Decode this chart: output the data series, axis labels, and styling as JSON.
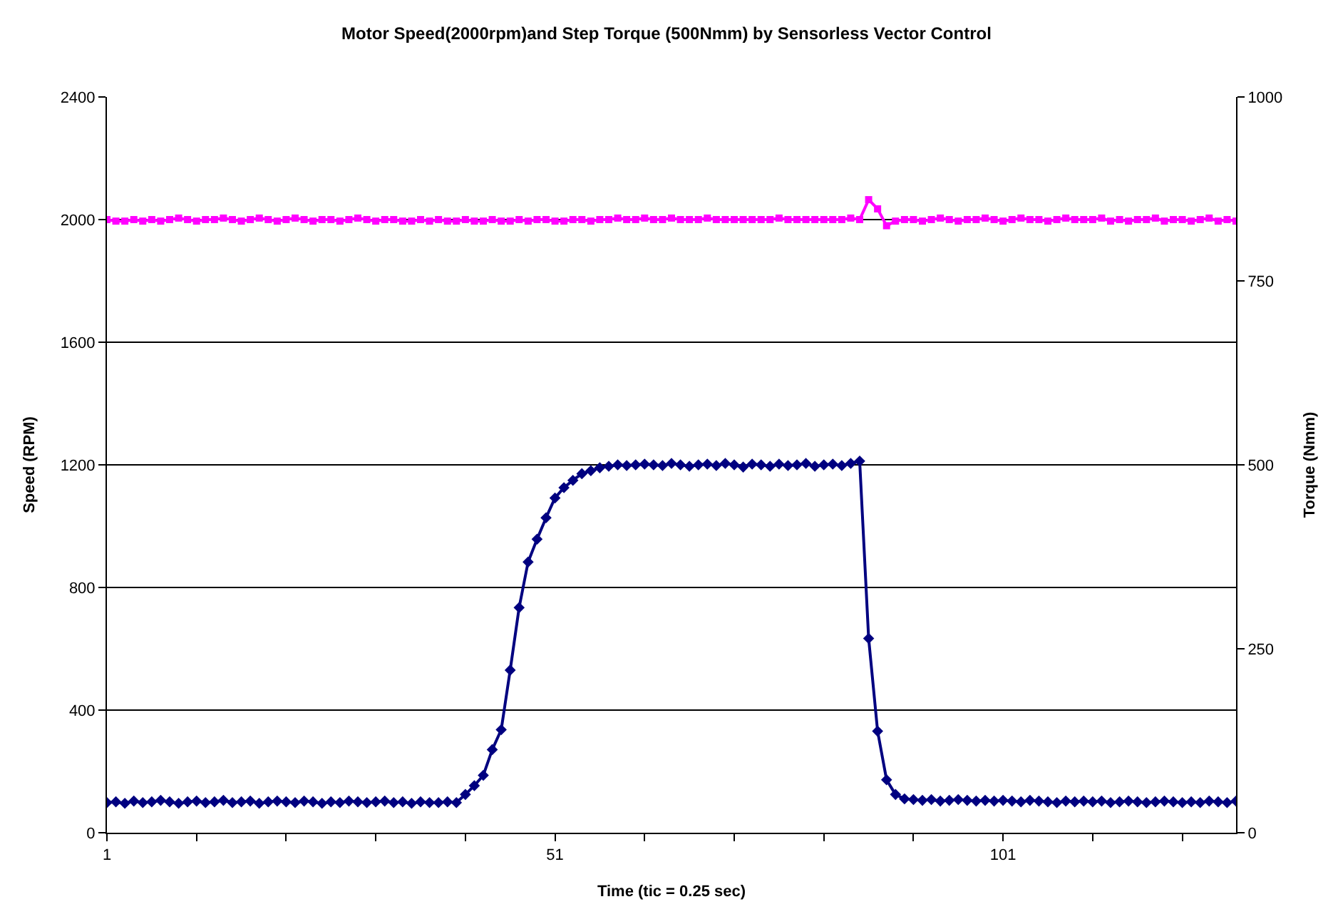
{
  "chart_data": {
    "type": "line",
    "title": "Motor Speed(2000rpm)and Step Torque (500Nmm) by Sensorless Vector Control",
    "xlabel": "Time (tic = 0.25 sec)",
    "ylabel": "Speed (RPM)",
    "y2label": "Torque (Nmm)",
    "x": [
      1,
      2,
      3,
      4,
      5,
      6,
      7,
      8,
      9,
      10,
      11,
      12,
      13,
      14,
      15,
      16,
      17,
      18,
      19,
      20,
      21,
      22,
      23,
      24,
      25,
      26,
      27,
      28,
      29,
      30,
      31,
      32,
      33,
      34,
      35,
      36,
      37,
      38,
      39,
      40,
      41,
      42,
      43,
      44,
      45,
      46,
      47,
      48,
      49,
      50,
      51,
      52,
      53,
      54,
      55,
      56,
      57,
      58,
      59,
      60,
      61,
      62,
      63,
      64,
      65,
      66,
      67,
      68,
      69,
      70,
      71,
      72,
      73,
      74,
      75,
      76,
      77,
      78,
      79,
      80,
      81,
      82,
      83,
      84,
      85,
      86,
      87,
      88,
      89,
      90,
      91,
      92,
      93,
      94,
      95,
      96,
      97,
      98,
      99,
      100,
      101,
      102,
      103,
      104,
      105,
      106,
      107,
      108,
      109,
      110,
      111,
      112,
      113,
      114,
      115,
      116,
      117,
      118,
      119,
      120,
      121,
      122,
      123,
      124,
      125,
      126,
      127
    ],
    "series": [
      {
        "color": "#ff00ff",
        "marker": "square",
        "values": [
          2000,
          1995,
          1995,
          2000,
          1995,
          2000,
          1995,
          2000,
          2005,
          2000,
          1995,
          2000,
          2000,
          2005,
          2000,
          1995,
          2000,
          2005,
          2000,
          1995,
          2000,
          2005,
          2000,
          1995,
          2000,
          2000,
          1995,
          2000,
          2005,
          2000,
          1995,
          2000,
          2000,
          1995,
          1995,
          2000,
          1995,
          2000,
          1995,
          1995,
          2000,
          1995,
          1995,
          2000,
          1995,
          1995,
          2000,
          1995,
          2000,
          2000,
          1995,
          1995,
          2000,
          2000,
          1995,
          2000,
          2000,
          2005,
          2000,
          2000,
          2005,
          2000,
          2000,
          2005,
          2000,
          2000,
          2000,
          2005,
          2000,
          2000,
          2000,
          2000,
          2000,
          2000,
          2000,
          2005,
          2000,
          2000,
          2000,
          2000,
          2000,
          2000,
          2000,
          2005,
          2000,
          2065,
          2035,
          1980,
          1995,
          2000,
          2000,
          1995,
          2000,
          2005,
          2000,
          1995,
          2000,
          2000,
          2005,
          2000,
          1995,
          2000,
          2005,
          2000,
          2000,
          1995,
          2000,
          2005,
          2000,
          2000,
          2000,
          2005,
          1995,
          2000,
          1995,
          2000,
          2000,
          2005,
          1995,
          2000,
          2000,
          1995,
          2000,
          2005,
          1995,
          2000,
          1995
        ]
      },
      {
        "color": "#000080",
        "marker": "diamond",
        "axis": "y2",
        "values": [
          41,
          42,
          40,
          43,
          41,
          42,
          44,
          42,
          40,
          42,
          43,
          41,
          42,
          44,
          41,
          42,
          43,
          40,
          42,
          43,
          42,
          41,
          43,
          42,
          40,
          42,
          41,
          43,
          42,
          41,
          42,
          43,
          41,
          42,
          40,
          42,
          41,
          41,
          42,
          41,
          52,
          64,
          78,
          113,
          140,
          221,
          306,
          368,
          399,
          428,
          455,
          469,
          479,
          488,
          492,
          496,
          498,
          500,
          499,
          500,
          501,
          500,
          499,
          502,
          500,
          498,
          500,
          501,
          499,
          502,
          500,
          497,
          501,
          500,
          498,
          501,
          499,
          500,
          502,
          498,
          500,
          501,
          499,
          502,
          505,
          264,
          138,
          72,
          52,
          46,
          45,
          44,
          45,
          43,
          44,
          45,
          44,
          43,
          44,
          43,
          44,
          43,
          42,
          44,
          43,
          42,
          41,
          43,
          42,
          43,
          42,
          43,
          41,
          42,
          43,
          42,
          41,
          42,
          43,
          42,
          41,
          42,
          41,
          43,
          42,
          41,
          43
        ]
      }
    ],
    "xlim": [
      1,
      127
    ],
    "xticks": [
      1,
      {
        "value": 11,
        "label": null
      },
      {
        "value": 21,
        "label": null
      },
      {
        "value": 31,
        "label": null
      },
      {
        "value": 41,
        "label": null
      },
      51,
      {
        "value": 61,
        "label": null
      },
      {
        "value": 71,
        "label": null
      },
      {
        "value": 81,
        "label": null
      },
      {
        "value": 91,
        "label": null
      },
      101,
      {
        "value": 111,
        "label": null
      },
      {
        "value": 121,
        "label": null
      }
    ],
    "ylim": [
      0,
      2400
    ],
    "yticks": [
      0,
      400,
      800,
      1200,
      1600,
      2000,
      2400
    ],
    "y2lim": [
      0,
      1000
    ],
    "y2ticks": [
      0,
      250,
      500,
      750,
      1000
    ],
    "grid": "y"
  }
}
